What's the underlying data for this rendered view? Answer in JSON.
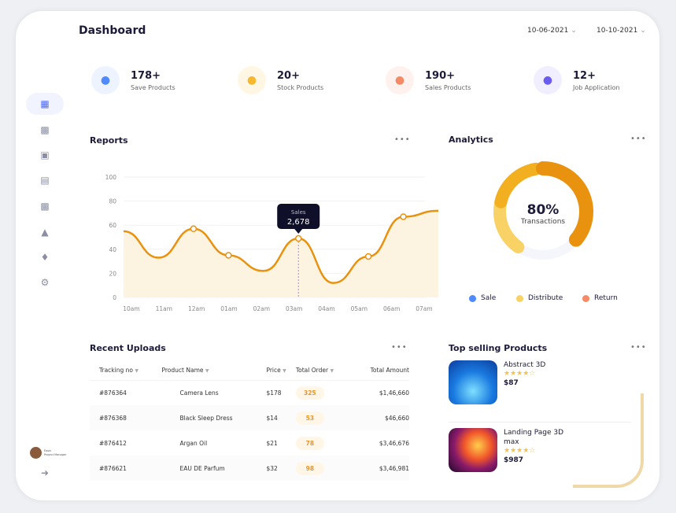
{
  "header": {
    "title": "Dashboard",
    "date_from": "10-06-2021",
    "date_to": "10-10-2021"
  },
  "sidebar": {
    "items": [
      "dashboard-icon",
      "reports-icon",
      "apps-icon",
      "document-icon",
      "calendar-icon",
      "analytics-icon",
      "bell-icon",
      "settings-icon"
    ],
    "user": {
      "name": "Easin",
      "role": "Project Manager"
    }
  },
  "stats": [
    {
      "value": "178+",
      "label": "Save Products",
      "color": "#4f8bff",
      "bg": "#eef4ff",
      "icon": "heart-icon"
    },
    {
      "value": "20+",
      "label": "Stock Products",
      "color": "#f5b82e",
      "bg": "#fff7e3",
      "icon": "box-icon"
    },
    {
      "value": "190+",
      "label": "Sales Products",
      "color": "#f58a66",
      "bg": "#fff1ee",
      "icon": "bag-icon"
    },
    {
      "value": "12+",
      "label": "Job Application",
      "color": "#6b5cf0",
      "bg": "#f1efff",
      "icon": "briefcase-icon"
    }
  ],
  "reports": {
    "title": "Reports",
    "more": "•••",
    "tooltip": {
      "label": "Sales",
      "value": "2,678"
    }
  },
  "chart_data": {
    "type": "area",
    "title": "Reports",
    "x": [
      "10am",
      "11am",
      "12am",
      "01am",
      "02am",
      "03am",
      "04am",
      "05am",
      "06am",
      "07am"
    ],
    "y_ticks": [
      0,
      20,
      40,
      60,
      80,
      100
    ],
    "ylim": [
      0,
      100
    ],
    "values": [
      55,
      33,
      57,
      35,
      22,
      49,
      12,
      34,
      67,
      72
    ],
    "markers": [
      2,
      3,
      5,
      7,
      8
    ],
    "highlight": 5,
    "color": "#e8920f"
  },
  "analytics": {
    "title": "Analytics",
    "percent": "80%",
    "label": "Transactions",
    "legend": [
      {
        "name": "Sale",
        "color": "#4f8bff"
      },
      {
        "name": "Distribute",
        "color": "#f9d266"
      },
      {
        "name": "Return",
        "color": "#f58a66"
      }
    ]
  },
  "uploads": {
    "title": "Recent Uploads",
    "columns": [
      "Tracking no",
      "Product Name",
      "Price",
      "Total Order",
      "Total Amount"
    ],
    "rows": [
      [
        "#876364",
        "Camera Lens",
        "$178",
        "325",
        "$1,46,660"
      ],
      [
        "#876368",
        "Black Sleep Dress",
        "$14",
        "53",
        "$46,660"
      ],
      [
        "#876412",
        "Argan Oil",
        "$21",
        "78",
        "$3,46,676"
      ],
      [
        "#876621",
        "EAU DE Parfum",
        "$32",
        "98",
        "$3,46,981"
      ]
    ]
  },
  "top": {
    "title": "Top selling Products",
    "items": [
      {
        "name": "Abstract 3D",
        "price": "$87",
        "stars": "★★★★☆"
      },
      {
        "name": "Landing Page 3D max",
        "price": "$987",
        "stars": "★★★★☆"
      }
    ]
  }
}
